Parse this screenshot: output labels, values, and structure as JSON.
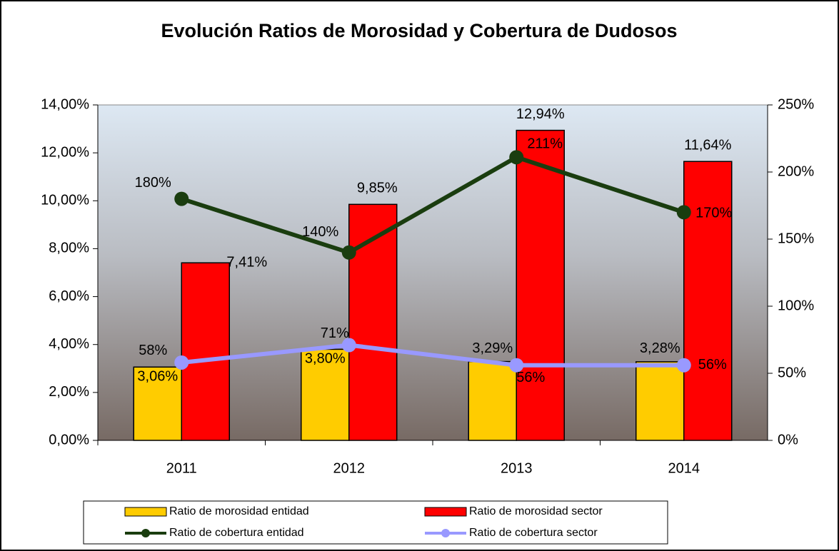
{
  "chart_data": {
    "type": "bar",
    "title": "Evolución Ratios de Morosidad y Cobertura de Dudosos",
    "categories": [
      "2011",
      "2012",
      "2013",
      "2014"
    ],
    "series": [
      {
        "name": "Ratio de morosidad entidad",
        "type": "bar",
        "color": "#ffcc00",
        "values": [
          3.06,
          3.8,
          3.29,
          3.28
        ],
        "value_labels": [
          "3,06%",
          "3,80%",
          "3,29%",
          "3,28%"
        ]
      },
      {
        "name": "Ratio de morosidad sector",
        "type": "bar",
        "color": "#ff0000",
        "values": [
          7.41,
          9.85,
          12.94,
          11.64
        ],
        "value_labels": [
          "7,41%",
          "9,85%",
          "12,94%",
          "11,64%"
        ]
      },
      {
        "name": "Ratio de cobertura entidad",
        "type": "line",
        "axis": "y2",
        "color": "#1a3d0f",
        "values": [
          180,
          140,
          211,
          170
        ],
        "value_labels": [
          "180%",
          "140%",
          "211%",
          "170%"
        ]
      },
      {
        "name": "Ratio de cobertura sector",
        "type": "line",
        "axis": "y2",
        "color": "#9999ff",
        "values": [
          58,
          71,
          56,
          56
        ],
        "value_labels": [
          "58%",
          "71%",
          "56%",
          "56%"
        ]
      }
    ],
    "ylim": [
      0,
      14
    ],
    "yticks": [
      {
        "value": 0,
        "label": "0,00%"
      },
      {
        "value": 2,
        "label": "2,00%"
      },
      {
        "value": 4,
        "label": "4,00%"
      },
      {
        "value": 6,
        "label": "6,00%"
      },
      {
        "value": 8,
        "label": "8,00%"
      },
      {
        "value": 10,
        "label": "10,00%"
      },
      {
        "value": 12,
        "label": "12,00%"
      },
      {
        "value": 14,
        "label": "14,00%"
      }
    ],
    "y2lim": [
      0,
      250
    ],
    "y2ticks": [
      {
        "value": 0,
        "label": "0%"
      },
      {
        "value": 50,
        "label": "50%"
      },
      {
        "value": 100,
        "label": "100%"
      },
      {
        "value": 150,
        "label": "150%"
      },
      {
        "value": 200,
        "label": "200%"
      },
      {
        "value": 250,
        "label": "250%"
      }
    ]
  }
}
